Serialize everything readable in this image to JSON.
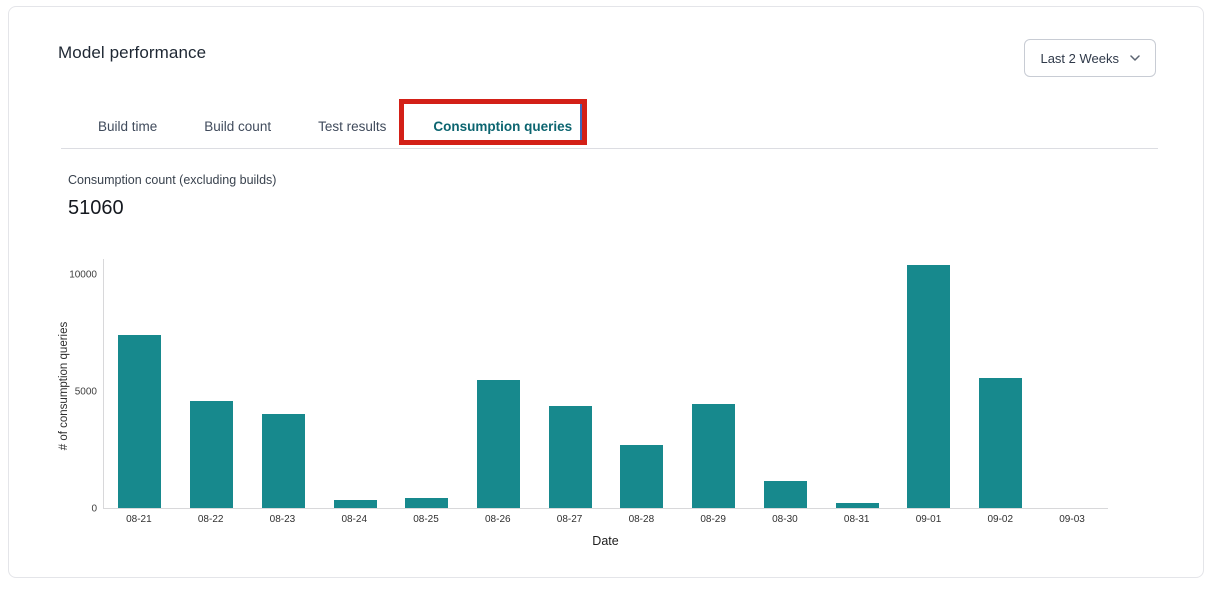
{
  "header": {
    "title": "Model performance",
    "period_selector": {
      "value": "Last 2 Weeks"
    }
  },
  "tabs": [
    {
      "label": "Build time",
      "active": false
    },
    {
      "label": "Build count",
      "active": false
    },
    {
      "label": "Test results",
      "active": false
    },
    {
      "label": "Consumption queries",
      "active": true,
      "annotated": true
    }
  ],
  "annotation": {
    "type": "highlight-box",
    "target": "Consumption queries tab",
    "color": "#d32017",
    "inner_edge_color": "#3d68bb"
  },
  "metric": {
    "label": "Consumption count (excluding builds)",
    "value": "51060"
  },
  "chart_data": {
    "type": "bar",
    "title": "",
    "categories": [
      "08-21",
      "08-22",
      "08-23",
      "08-24",
      "08-25",
      "08-26",
      "08-27",
      "08-28",
      "08-29",
      "08-30",
      "08-31",
      "09-01",
      "09-02",
      "09-03"
    ],
    "values": [
      7400,
      4570,
      4020,
      330,
      440,
      5480,
      4380,
      2700,
      4440,
      1150,
      200,
      10400,
      5550,
      0
    ],
    "xlabel": "Date",
    "ylabel": "# of consumption queries",
    "yticks": [
      0,
      5000,
      10000
    ],
    "ylim": [
      0,
      10700
    ],
    "grid": false,
    "legend_position": "none",
    "bar_color": "#17898d"
  },
  "colors": {
    "accent_teal": "#0c6570",
    "bar_teal": "#17898d",
    "annotation_red": "#d32017",
    "card_border": "#e4e5e9"
  }
}
